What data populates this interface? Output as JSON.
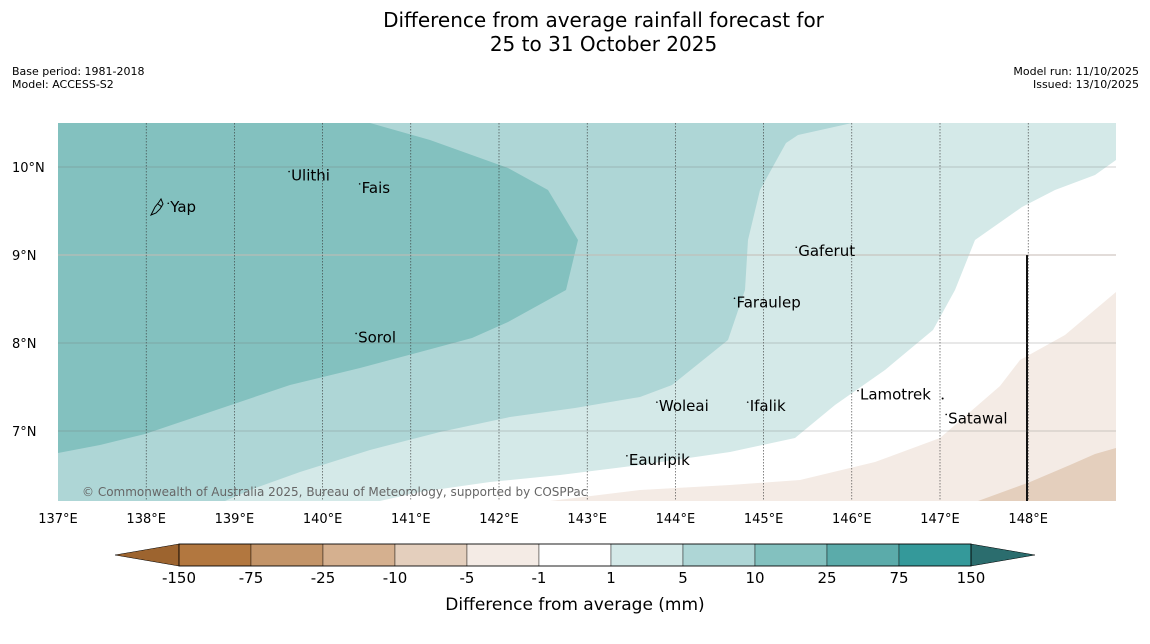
{
  "title": {
    "line1": "Difference from average rainfall forecast for",
    "line2": "25 to 31 October 2025"
  },
  "meta_left": {
    "base_period": "Base period: 1981-2018",
    "model": "Model: ACCESS-S2"
  },
  "meta_right": {
    "model_run": "Model run: 11/10/2025",
    "issued": "Issued: 13/10/2025"
  },
  "map": {
    "lon_range": [
      137,
      149
    ],
    "lat_range": [
      6.2,
      10.5
    ],
    "longitude_labels": [
      "137°E",
      "138°E",
      "139°E",
      "140°E",
      "141°E",
      "142°E",
      "143°E",
      "144°E",
      "145°E",
      "146°E",
      "147°E",
      "148°E"
    ],
    "latitude_labels": [
      "10°N",
      "9°N",
      "8°N",
      "7°N"
    ],
    "places": [
      {
        "name": "Yap",
        "lon": 138.25,
        "lat": 9.52
      },
      {
        "name": "Ulithi",
        "lon": 139.62,
        "lat": 9.88
      },
      {
        "name": "Fais",
        "lon": 140.42,
        "lat": 9.74
      },
      {
        "name": "Gaferut",
        "lon": 145.37,
        "lat": 9.02
      },
      {
        "name": "Faraulep",
        "lon": 144.67,
        "lat": 8.44
      },
      {
        "name": "Sorol",
        "lon": 140.38,
        "lat": 8.04
      },
      {
        "name": "Woleai",
        "lon": 143.79,
        "lat": 7.26
      },
      {
        "name": "Ifalik",
        "lon": 144.82,
        "lat": 7.26
      },
      {
        "name": "Lamotrek",
        "lon": 146.07,
        "lat": 7.39
      },
      {
        "name": "Satawal",
        "lon": 147.07,
        "lat": 7.12
      },
      {
        "name": "Eauripik",
        "lon": 143.45,
        "lat": 6.65
      }
    ],
    "copyright": "© Commonwealth of Australia 2025, Bureau of Meteorology, supported by COSPPac"
  },
  "colorbar": {
    "title": "Difference from average (mm)",
    "tick_labels": [
      "-150",
      "-75",
      "-25",
      "-10",
      "-5",
      "-1",
      "1",
      "5",
      "10",
      "25",
      "75",
      "150"
    ],
    "colors": [
      "#b2773f",
      "#c39468",
      "#d5b08f",
      "#e4cfbd",
      "#f4ebe5",
      "#ffffff",
      "#d4e9e8",
      "#aed6d6",
      "#83c1bf",
      "#5babaa",
      "#34999a",
      "#2f7c7c"
    ],
    "extend_low_color": "#9d642f",
    "extend_high_color": "#2b6d6e"
  },
  "legend_colors": {
    "level_10_25": "#83c1bf",
    "level_5_10": "#aed6d6",
    "level_1_5": "#d4e9e8",
    "level_neg1_neg5": "#f4ebe5",
    "level_neg5_neg10": "#e4cfbd"
  }
}
